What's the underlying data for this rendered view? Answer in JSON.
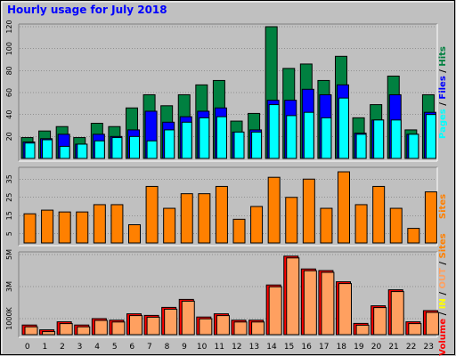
{
  "chart_title": "Hourly usage for July 2018",
  "colors": {
    "background": "#c0c0c0",
    "plot_background": "#c0c0c0",
    "hits": "#008040",
    "files": "#0000ff",
    "pages": "#00ffff",
    "sites": "#ff8000",
    "volume": "#ff0000",
    "in": "#ffff00",
    "out": "#ffa060",
    "title": "#0000ff"
  },
  "chart_data": [
    {
      "id": "pages-files-hits",
      "type": "bar",
      "categories": [
        "0",
        "1",
        "2",
        "3",
        "4",
        "5",
        "6",
        "7",
        "8",
        "9",
        "10",
        "11",
        "12",
        "13",
        "14",
        "15",
        "16",
        "17",
        "18",
        "19",
        "20",
        "21",
        "22",
        "23"
      ],
      "series": [
        {
          "name": "Hits",
          "values": [
            19,
            25,
            29,
            19,
            32,
            29,
            46,
            58,
            48,
            58,
            67,
            71,
            34,
            41,
            120,
            82,
            86,
            71,
            93,
            37,
            49,
            75,
            26,
            58
          ]
        },
        {
          "name": "Files",
          "values": [
            15,
            18,
            22,
            13,
            22,
            20,
            26,
            43,
            33,
            38,
            43,
            46,
            24,
            26,
            53,
            53,
            63,
            58,
            67,
            23,
            35,
            58,
            22,
            42
          ]
        },
        {
          "name": "Pages",
          "values": [
            14,
            17,
            11,
            13,
            16,
            19,
            20,
            16,
            26,
            33,
            37,
            38,
            24,
            24,
            49,
            39,
            42,
            37,
            55,
            22,
            35,
            35,
            22,
            40
          ]
        }
      ],
      "ylim": [
        0,
        120
      ],
      "yticks": [
        20,
        40,
        60,
        80,
        100,
        120
      ],
      "legend": [
        {
          "text": "Pages",
          "color": "#00ffff"
        },
        {
          "text": " / ",
          "color": "#000000"
        },
        {
          "text": "Files",
          "color": "#0000ff"
        },
        {
          "text": " / ",
          "color": "#000000"
        },
        {
          "text": "Hits",
          "color": "#008040"
        }
      ]
    },
    {
      "id": "sites",
      "type": "bar",
      "categories": [
        "0",
        "1",
        "2",
        "3",
        "4",
        "5",
        "6",
        "7",
        "8",
        "9",
        "10",
        "11",
        "12",
        "13",
        "14",
        "15",
        "16",
        "17",
        "18",
        "19",
        "20",
        "21",
        "22",
        "23"
      ],
      "series": [
        {
          "name": "Sites",
          "values": [
            16,
            18,
            17,
            17,
            21,
            21,
            10,
            31,
            19,
            27,
            27,
            31,
            13,
            20,
            36,
            25,
            35,
            19,
            39,
            21,
            31,
            19,
            8,
            28
          ]
        }
      ],
      "ylim": [
        0,
        40
      ],
      "yticks": [
        5,
        15,
        25,
        35
      ],
      "legend": [
        {
          "text": "Sites",
          "color": "#ff8000"
        }
      ]
    },
    {
      "id": "volume",
      "type": "bar",
      "categories": [
        "0",
        "1",
        "2",
        "3",
        "4",
        "5",
        "6",
        "7",
        "8",
        "9",
        "10",
        "11",
        "12",
        "13",
        "14",
        "15",
        "16",
        "17",
        "18",
        "19",
        "20",
        "21",
        "22",
        "23"
      ],
      "series": [
        {
          "name": "Volume",
          "values": [
            0.6,
            0.3,
            0.8,
            0.6,
            1.0,
            0.9,
            1.3,
            1.2,
            1.7,
            2.2,
            1.1,
            1.3,
            0.9,
            0.9,
            3.1,
            4.9,
            4.1,
            4.0,
            3.3,
            0.7,
            1.8,
            2.8,
            0.8,
            1.5
          ]
        }
      ],
      "ylim": [
        0,
        5.0
      ],
      "yticks": [
        1,
        3,
        5
      ],
      "ytick_labels": [
        "1000K",
        "3M",
        "5M"
      ],
      "legend": [
        {
          "text": "Volume",
          "color": "#ff0000"
        },
        {
          "text": " / ",
          "color": "#000000"
        },
        {
          "text": "IN",
          "color": "#ffff00"
        },
        {
          "text": " / ",
          "color": "#000000"
        },
        {
          "text": "OUT",
          "color": "#ffa060"
        },
        {
          "text": " / ",
          "color": "#000000"
        },
        {
          "text": "Sites",
          "color": "#ff8000"
        }
      ]
    }
  ]
}
